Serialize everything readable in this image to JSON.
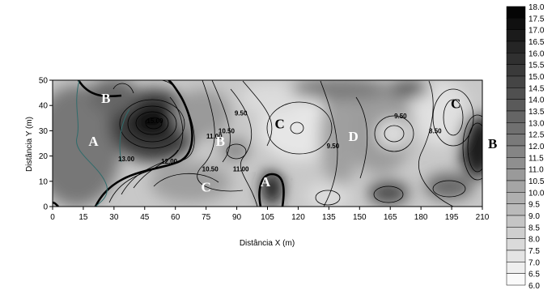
{
  "chart_data": {
    "type": "heatmap",
    "title": "",
    "xlabel": "Distância X (m)",
    "ylabel": "Distância Y (m)",
    "xlim": [
      0,
      210
    ],
    "ylim": [
      0,
      50
    ],
    "xticks": [
      0,
      15,
      30,
      45,
      60,
      75,
      90,
      105,
      120,
      135,
      150,
      165,
      180,
      195,
      210
    ],
    "yticks": [
      0,
      10,
      20,
      30,
      40,
      50
    ],
    "colorbar": {
      "levels": [
        "18.0",
        "17.5",
        "17.0",
        "16.5",
        "16.0",
        "15.5",
        "15.0",
        "14.5",
        "14.0",
        "13.5",
        "13.0",
        "12.5",
        "12.0",
        "11.5",
        "11.0",
        "10.5",
        "10.0",
        "9.5",
        "9.0",
        "8.5",
        "8.0",
        "7.5",
        "7.0",
        "6.5",
        "6.0"
      ],
      "color_low": "#ffffff",
      "color_high": "#000000"
    },
    "contour_labels": [
      {
        "text": "15.00",
        "x": 50,
        "y": 33
      },
      {
        "text": "13.00",
        "x": 36,
        "y": 18
      },
      {
        "text": "12.00",
        "x": 57,
        "y": 17
      },
      {
        "text": "11.00",
        "x": 79,
        "y": 27
      },
      {
        "text": "10.50",
        "x": 85,
        "y": 29
      },
      {
        "text": "9.50",
        "x": 92,
        "y": 36
      },
      {
        "text": "10.50",
        "x": 77,
        "y": 14
      },
      {
        "text": "11.00",
        "x": 92,
        "y": 14
      },
      {
        "text": "9.50",
        "x": 137,
        "y": 23
      },
      {
        "text": "9.50",
        "x": 170,
        "y": 35
      },
      {
        "text": "8.50",
        "x": 187,
        "y": 29
      }
    ],
    "zones": [
      {
        "text": "B",
        "x": 26,
        "y": 41,
        "tone": "light"
      },
      {
        "text": "A",
        "x": 20,
        "y": 24,
        "tone": "light"
      },
      {
        "text": "B",
        "x": 82,
        "y": 24,
        "tone": "light"
      },
      {
        "text": "C",
        "x": 75,
        "y": 6,
        "tone": "light"
      },
      {
        "text": "A",
        "x": 104,
        "y": 8,
        "tone": "light"
      },
      {
        "text": "C",
        "x": 111,
        "y": 31,
        "tone": "dark"
      },
      {
        "text": "D",
        "x": 147,
        "y": 26,
        "tone": "light"
      },
      {
        "text": "C",
        "x": 197,
        "y": 39,
        "tone": "dark"
      },
      {
        "text": "B",
        "x": 215,
        "y": 23,
        "tone": "dark"
      }
    ]
  }
}
